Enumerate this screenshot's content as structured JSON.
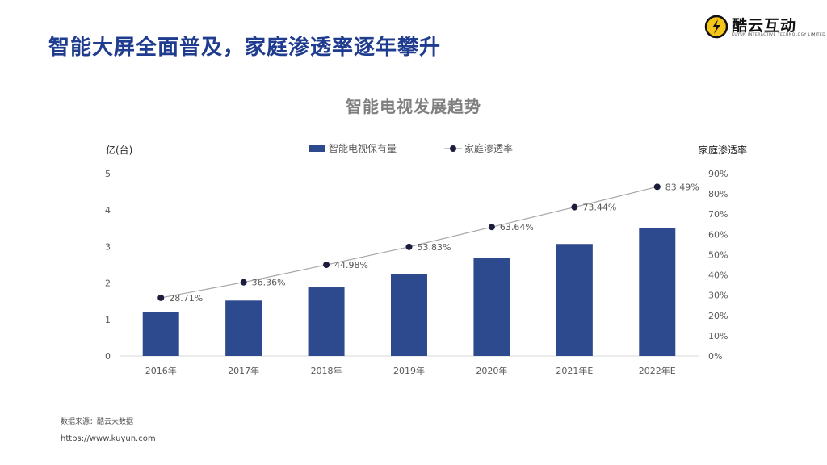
{
  "header": {
    "title": "智能大屏全面普及，家庭渗透率逐年攀升",
    "logo_text": "酷云互动",
    "logo_sub": "KUYUN INTERACTIVE TECHNOLOGY LIMITED"
  },
  "chart_data": {
    "type": "bar",
    "title": "智能电视发展趋势",
    "categories": [
      "2016年",
      "2017年",
      "2018年",
      "2019年",
      "2020年",
      "2021年E",
      "2022年E"
    ],
    "series": [
      {
        "name": "智能电视保有量",
        "type": "bar",
        "axis": "left",
        "color": "#2e4a8f",
        "values": [
          1.2,
          1.52,
          1.88,
          2.25,
          2.68,
          3.07,
          3.5
        ]
      },
      {
        "name": "家庭渗透率",
        "type": "line",
        "axis": "right",
        "color": "#1c1c3c",
        "line_color": "#a6a6a6",
        "values": [
          28.71,
          36.36,
          44.98,
          53.83,
          63.64,
          73.44,
          83.49
        ],
        "labels": [
          "28.71%",
          "36.36%",
          "44.98%",
          "53.83%",
          "63.64%",
          "73.44%",
          "83.49%"
        ]
      }
    ],
    "ylabel_left": "亿(台)",
    "ylabel_right": "家庭渗透率",
    "ylim_left": [
      0,
      5
    ],
    "yticks_left": [
      "0",
      "1",
      "2",
      "3",
      "4",
      "5"
    ],
    "ylim_right": [
      0,
      90
    ],
    "yticks_right": [
      "0%",
      "10%",
      "20%",
      "30%",
      "40%",
      "50%",
      "60%",
      "70%",
      "80%",
      "90%"
    ],
    "legend_position": "top-center",
    "grid": false
  },
  "footer": {
    "source": "数据来源：酷云大数据",
    "url": "https://www.kuyun.com"
  }
}
